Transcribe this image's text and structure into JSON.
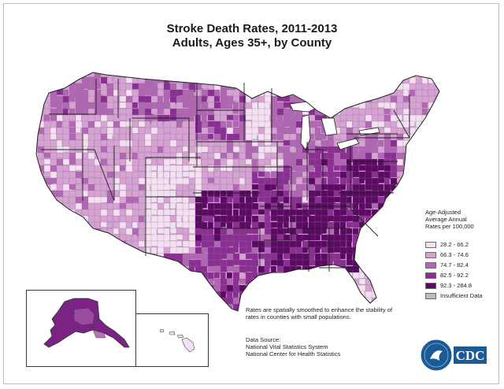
{
  "title": {
    "line1": "Stroke Death Rates, 2011-2013",
    "line2": "Adults, Ages 35+, by County"
  },
  "legend": {
    "title_line1": "Age-Adjusted",
    "title_line2": "Average Annual",
    "title_line3": "Rates per 100,000",
    "items": [
      {
        "label": "28.2 - 66.2",
        "color": "#f3e1f1"
      },
      {
        "label": "66.3 - 74.6",
        "color": "#d6a3d3"
      },
      {
        "label": "74.7 - 82.4",
        "color": "#b168b3"
      },
      {
        "label": "82.5 - 92.2",
        "color": "#8a2f92"
      },
      {
        "label": "92.3 - 284.8",
        "color": "#5b0a63"
      },
      {
        "label": "Insufficient Data",
        "color": "#bdbdbd"
      }
    ]
  },
  "note": "Rates are spatially smoothed to enhance the stability of rates in counties with small populations.",
  "source": {
    "heading": "Data Source:",
    "line1": "National Vital Statistics System",
    "line2": "National Center for Health Statistics"
  },
  "logo": {
    "text": "CDC",
    "colors": {
      "blue": "#1a5a96",
      "white": "#ffffff"
    }
  },
  "map": {
    "regions": [
      {
        "name": "Washington",
        "level": 2
      },
      {
        "name": "Oregon",
        "level": 1
      },
      {
        "name": "California",
        "level": 1
      },
      {
        "name": "Nevada",
        "level": 1
      },
      {
        "name": "Idaho",
        "level": 1
      },
      {
        "name": "Montana",
        "level": 2
      },
      {
        "name": "Wyoming",
        "level": 1
      },
      {
        "name": "Utah",
        "level": 1
      },
      {
        "name": "Arizona",
        "level": 1
      },
      {
        "name": "Colorado",
        "level": 0
      },
      {
        "name": "New Mexico",
        "level": 0
      },
      {
        "name": "North Dakota",
        "level": 2
      },
      {
        "name": "South Dakota",
        "level": 2
      },
      {
        "name": "Nebraska",
        "level": 1
      },
      {
        "name": "Kansas",
        "level": 1
      },
      {
        "name": "Oklahoma",
        "level": 4
      },
      {
        "name": "Texas",
        "level": 3
      },
      {
        "name": "Minnesota",
        "level": 0
      },
      {
        "name": "Iowa",
        "level": 1
      },
      {
        "name": "Missouri",
        "level": 3
      },
      {
        "name": "Arkansas",
        "level": 4
      },
      {
        "name": "Louisiana",
        "level": 4
      },
      {
        "name": "Wisconsin",
        "level": 2
      },
      {
        "name": "Illinois",
        "level": 2
      },
      {
        "name": "Michigan",
        "level": 2
      },
      {
        "name": "Indiana",
        "level": 3
      },
      {
        "name": "Ohio",
        "level": 3
      },
      {
        "name": "Kentucky",
        "level": 4
      },
      {
        "name": "Tennessee",
        "level": 4
      },
      {
        "name": "Mississippi",
        "level": 4
      },
      {
        "name": "Alabama",
        "level": 4
      },
      {
        "name": "Georgia",
        "level": 4
      },
      {
        "name": "Florida",
        "level": 0
      },
      {
        "name": "South Carolina",
        "level": 4
      },
      {
        "name": "North Carolina",
        "level": 4
      },
      {
        "name": "Virginia",
        "level": 4
      },
      {
        "name": "West Virginia",
        "level": 3
      },
      {
        "name": "Pennsylvania",
        "level": 2
      },
      {
        "name": "New York",
        "level": 1
      },
      {
        "name": "Maine",
        "level": 1
      },
      {
        "name": "New England",
        "level": 0
      },
      {
        "name": "Alaska",
        "level": 3
      },
      {
        "name": "Hawaii",
        "level": 0
      }
    ]
  }
}
